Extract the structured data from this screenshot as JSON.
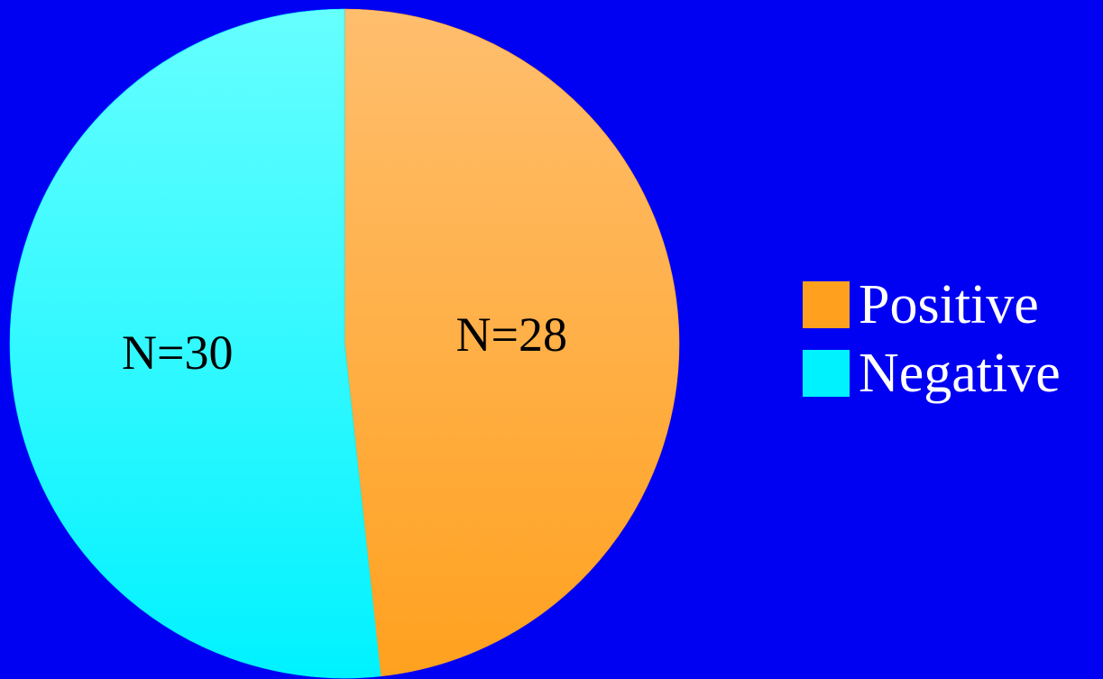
{
  "chart_data": {
    "type": "pie",
    "slices": [
      {
        "name": "Positive",
        "value": 28,
        "label": "N=28",
        "color": "#FFA11F",
        "color_light": "#FFBE6E"
      },
      {
        "name": "Negative",
        "value": 30,
        "label": "N=30",
        "color": "#00F2FF",
        "color_light": "#66FFFF"
      }
    ],
    "start_angle_deg": 0,
    "direction": "clockwise",
    "legend_position": "right",
    "background": "#0000F2"
  },
  "legend": {
    "items": [
      {
        "label": "Positive",
        "color": "#FFA11F"
      },
      {
        "label": "Negative",
        "color": "#00F2FF"
      }
    ]
  }
}
